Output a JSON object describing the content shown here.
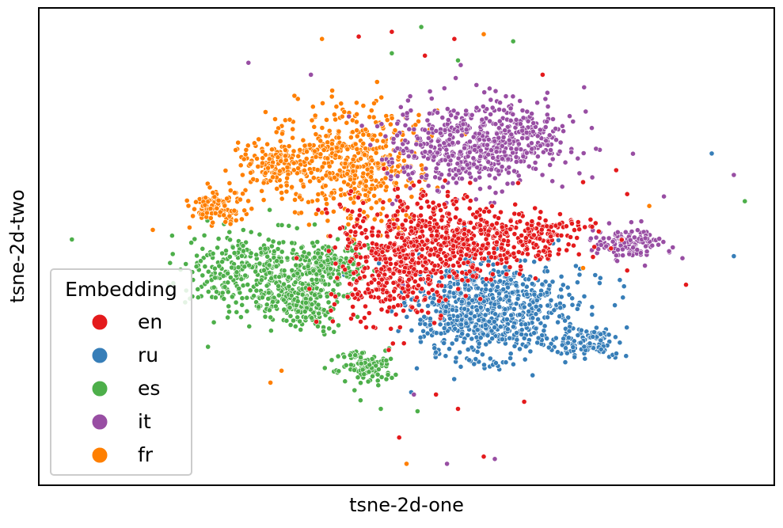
{
  "chart_data": {
    "type": "scatter",
    "title": "",
    "xlabel": "tsne-2d-one",
    "ylabel": "tsne-2d-two",
    "xlim": [
      0,
      100
    ],
    "ylim": [
      0,
      100
    ],
    "grid": false,
    "axis_ticks_visible": false,
    "legend": {
      "title": "Embedding",
      "placement": "lower-left",
      "entries": [
        "en",
        "ru",
        "es",
        "it",
        "fr"
      ]
    },
    "series": [
      {
        "name": "en",
        "color": "#e41a1c",
        "clusters": [
          {
            "cx": 52,
            "cy": 50,
            "sx": 5.5,
            "sy": 5.5,
            "n": 520
          },
          {
            "cx": 61,
            "cy": 52,
            "sx": 5,
            "sy": 3.5,
            "n": 220
          },
          {
            "cx": 69,
            "cy": 53,
            "sx": 4,
            "sy": 2,
            "n": 90
          },
          {
            "cx": 47,
            "cy": 42,
            "sx": 4,
            "sy": 5,
            "n": 150
          }
        ],
        "outliers": [
          [
            43.5,
            94
          ],
          [
            48,
            95
          ],
          [
            52.5,
            90
          ],
          [
            56.5,
            93.5
          ],
          [
            68.5,
            86
          ],
          [
            60.5,
            6
          ],
          [
            66,
            17.5
          ],
          [
            57,
            16
          ],
          [
            49,
            10
          ],
          [
            74,
            63.5
          ],
          [
            78.5,
            66
          ],
          [
            80,
            61
          ],
          [
            88,
            42
          ],
          [
            80,
            45
          ],
          [
            54,
            19
          ]
        ]
      },
      {
        "name": "ru",
        "color": "#377eb8",
        "clusters": [
          {
            "cx": 59.5,
            "cy": 36,
            "sx": 4.5,
            "sy": 5.5,
            "n": 600
          },
          {
            "cx": 67,
            "cy": 38,
            "sx": 4,
            "sy": 4,
            "n": 180
          },
          {
            "cx": 75,
            "cy": 30,
            "sx": 2,
            "sy": 1.8,
            "n": 110
          }
        ],
        "outliers": [
          [
            91.5,
            69.5
          ],
          [
            94.5,
            48
          ],
          [
            71,
            41
          ],
          [
            79,
            43
          ]
        ]
      },
      {
        "name": "es",
        "color": "#4daf4a",
        "clusters": [
          {
            "cx": 30,
            "cy": 45,
            "sx": 5,
            "sy": 4.5,
            "n": 420
          },
          {
            "cx": 36,
            "cy": 38,
            "sx": 2.2,
            "sy": 3,
            "n": 160
          },
          {
            "cx": 40,
            "cy": 46.5,
            "sx": 2.5,
            "sy": 2.5,
            "n": 150
          },
          {
            "cx": 44.5,
            "cy": 25,
            "sx": 2,
            "sy": 1.8,
            "n": 120
          }
        ],
        "outliers": [
          [
            4.5,
            51.5
          ],
          [
            52,
            96
          ],
          [
            48,
            90.5
          ],
          [
            57,
            89
          ],
          [
            64.5,
            93
          ],
          [
            96,
            59.5
          ],
          [
            46.5,
            16
          ],
          [
            51.5,
            15.5
          ],
          [
            23,
            29
          ]
        ]
      },
      {
        "name": "it",
        "color": "#984ea3",
        "clusters": [
          {
            "cx": 56,
            "cy": 71,
            "sx": 4.5,
            "sy": 4.5,
            "n": 380
          },
          {
            "cx": 65,
            "cy": 72,
            "sx": 4,
            "sy": 4,
            "n": 260
          },
          {
            "cx": 80,
            "cy": 50.5,
            "sx": 2.2,
            "sy": 1.6,
            "n": 130
          }
        ],
        "outliers": [
          [
            28.5,
            88.5
          ],
          [
            37,
            86
          ],
          [
            50.5,
            81.5
          ],
          [
            94.5,
            65
          ],
          [
            85,
            60.5
          ],
          [
            51,
            19
          ],
          [
            55.5,
            4.5
          ],
          [
            62,
            5.5
          ],
          [
            49.5,
            42
          ],
          [
            42,
            51.5
          ]
        ]
      },
      {
        "name": "fr",
        "color": "#ff7f00",
        "clusters": [
          {
            "cx": 43,
            "cy": 67.5,
            "sx": 4.5,
            "sy": 6,
            "n": 480
          },
          {
            "cx": 32.5,
            "cy": 67.5,
            "sx": 3,
            "sy": 2.5,
            "n": 160
          },
          {
            "cx": 24.5,
            "cy": 58.5,
            "sx": 2,
            "sy": 1.8,
            "n": 110
          }
        ],
        "outliers": [
          [
            38.5,
            93.5
          ],
          [
            60.5,
            94.5
          ],
          [
            46,
            84.5
          ],
          [
            15.5,
            53.5
          ],
          [
            83,
            58.5
          ],
          [
            74,
            45.5
          ],
          [
            33,
            24
          ],
          [
            31.5,
            21.5
          ],
          [
            50,
            4.5
          ],
          [
            20.5,
            54
          ]
        ]
      }
    ]
  }
}
